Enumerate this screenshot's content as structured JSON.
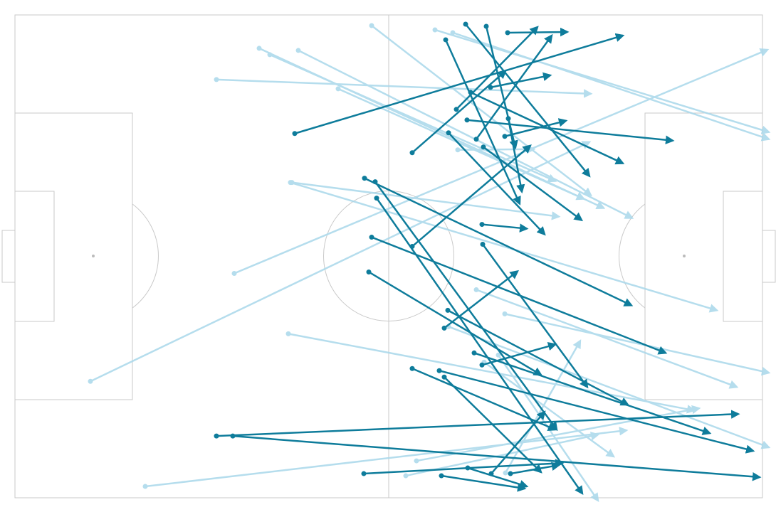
{
  "chart_data": {
    "type": "arrows",
    "xlim": [
      0,
      105
    ],
    "ylim": [
      0,
      68
    ],
    "series": [
      {
        "color": "#a9d8ea",
        "x": [
          50.1,
          59.0,
          61.5,
          34.3,
          35.8,
          39.8,
          28.3,
          45.4,
          38.7,
          38.9,
          30.8,
          10.6,
          62.2,
          38.4,
          64.8,
          68.8,
          18.3,
          56.4,
          54.9,
          68.9,
          65.9,
          67.9,
          60.9
        ],
        "y": [
          1.5,
          2.1,
          2.5,
          4.7,
          5.6,
          5.0,
          9.1,
          10.4,
          23.6,
          23.6,
          36.4,
          51.6,
          19.0,
          44.9,
          38.7,
          42.1,
          66.4,
          62.8,
          64.9,
          64.5,
          48.9,
          47.9,
          43.9
        ],
        "x2": [
          80.9,
          105.9,
          105.9,
          82.7,
          75.9,
          86.7,
          80.9,
          79.9,
          98.6,
          76.4,
          105.7,
          80.7,
          72.9,
          95.4,
          101.4,
          105.9,
          85.9,
          96.1,
          81.9,
          79.4,
          84.1,
          81.9,
          105.9
        ],
        "y2": [
          25.4,
          16.5,
          17.5,
          27.2,
          23.4,
          28.6,
          11.1,
          25.9,
          41.6,
          28.4,
          4.9,
          17.9,
          18.9,
          55.7,
          52.4,
          50.4,
          58.5,
          55.4,
          59.1,
          45.9,
          62.2,
          68.4,
          60.9
        ]
      },
      {
        "color": "#0e7c9b",
        "x": [
          39.3,
          63.3,
          66.2,
          60.5,
          69.2,
          62.0,
          64.8,
          64.0,
          66.8,
          63.5,
          68.8,
          60.9,
          65.8,
          69.3,
          55.8,
          49.1,
          50.6,
          50.8,
          55.8,
          65.6,
          50.1,
          65.7,
          49.7,
          60.3,
          60.8,
          64.5,
          65.6,
          59.6,
          55.8,
          60.3,
          28.3,
          30.6,
          49.0,
          59.9,
          63.6,
          66.9,
          69.6
        ],
        "y": [
          16.7,
          1.3,
          1.6,
          3.5,
          2.5,
          13.3,
          17.5,
          10.9,
          10.2,
          14.8,
          17.1,
          16.6,
          18.6,
          14.6,
          19.4,
          23.0,
          23.5,
          25.8,
          32.6,
          29.5,
          31.3,
          32.3,
          36.2,
          44.1,
          41.6,
          47.6,
          49.3,
          50.1,
          49.8,
          51.0,
          59.3,
          59.3,
          64.6,
          64.9,
          63.8,
          64.6,
          64.6
        ],
        "x2": [
          85.4,
          80.7,
          70.3,
          70.9,
          77.6,
          73.4,
          75.4,
          85.4,
          75.2,
          92.4,
          77.4,
          74.4,
          79.6,
          71.2,
          68.9,
          86.6,
          76.1,
          79.7,
          72.4,
          71.9,
          91.4,
          80.4,
          73.9,
          70.6,
          86.1,
          97.6,
          75.9,
          103.7,
          75.9,
          73.9,
          101.6,
          104.6,
          76.9,
          71.6,
          71.9,
          74.4,
          76.4
        ],
        "y2": [
          2.9,
          22.7,
          18.7,
          26.6,
          2.4,
          1.7,
          2.9,
          20.9,
          8.5,
          17.7,
          14.9,
          30.9,
          28.9,
          24.9,
          7.9,
          40.9,
          58.4,
          67.4,
          18.4,
          30.1,
          47.6,
          52.4,
          50.7,
          36.1,
          54.9,
          58.9,
          46.4,
          61.4,
          58.4,
          64.4,
          56.2,
          65.1,
          63.1,
          66.7,
          66.4,
          55.9,
          63.4
        ]
      }
    ]
  }
}
